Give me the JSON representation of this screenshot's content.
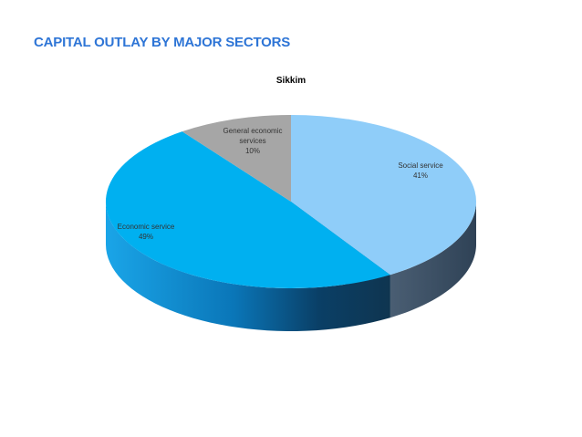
{
  "slide": {
    "title": "CAPITAL OUTLAY BY MAJOR SECTORS"
  },
  "chart_data": {
    "type": "pie",
    "title": "Sikkim",
    "three_d": true,
    "legend": "none",
    "categories": [
      "Social service",
      "Economic service",
      "General economic services"
    ],
    "values": [
      41,
      49,
      10
    ],
    "labels": [
      [
        "Social service",
        "41%"
      ],
      [
        "Economic service",
        "49%"
      ],
      [
        "General economic",
        "services",
        "10%"
      ]
    ],
    "colors": [
      "#8fcdf9",
      "#00b0f0",
      "#a6a6a6"
    ],
    "side_colors": [
      "#3d5066",
      "#0c6aa0",
      "#6e6e6e"
    ]
  }
}
